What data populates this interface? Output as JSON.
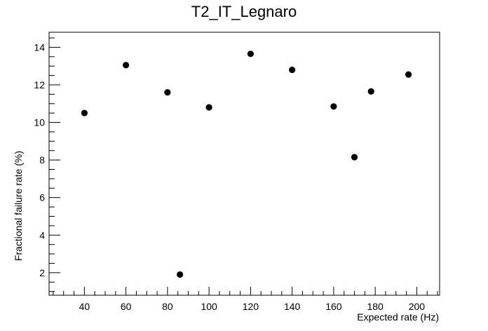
{
  "chart_data": {
    "type": "scatter",
    "title": "T2_IT_Legnaro",
    "xlabel": "Expected rate (Hz)",
    "ylabel": "Fractional failure rate (%)",
    "xlim": [
      23,
      211
    ],
    "ylim": [
      0.8,
      14.8
    ],
    "x_ticks": [
      40,
      60,
      80,
      100,
      120,
      140,
      160,
      180,
      200
    ],
    "y_ticks": [
      2,
      4,
      6,
      8,
      10,
      12,
      14
    ],
    "x_minor_step": 5,
    "y_minor_step": 0.5,
    "grid": false,
    "marker_color": "#000000",
    "points": [
      {
        "x": 40,
        "y": 10.5
      },
      {
        "x": 60,
        "y": 13.05
      },
      {
        "x": 80,
        "y": 11.6
      },
      {
        "x": 86,
        "y": 1.9
      },
      {
        "x": 100,
        "y": 10.8
      },
      {
        "x": 120,
        "y": 13.65
      },
      {
        "x": 140,
        "y": 12.8
      },
      {
        "x": 160,
        "y": 10.85
      },
      {
        "x": 170,
        "y": 8.15
      },
      {
        "x": 178,
        "y": 11.65
      },
      {
        "x": 196,
        "y": 12.55
      }
    ]
  }
}
